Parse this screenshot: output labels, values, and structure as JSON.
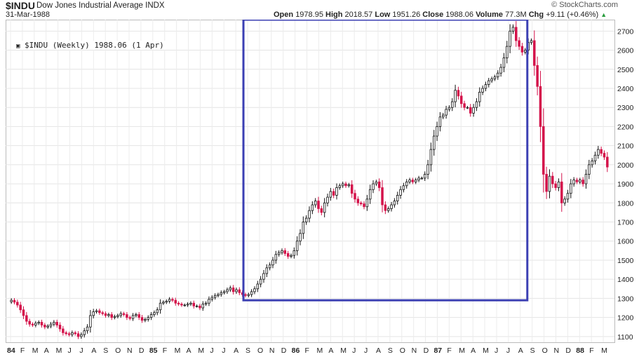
{
  "header": {
    "symbol": "$INDU",
    "name": "Dow Jones Industrial Average INDX",
    "date": "31-Mar-1988",
    "open_label": "Open",
    "open": "1978.95",
    "high_label": "High",
    "high": "2018.57",
    "low_label": "Low",
    "low": "1951.26",
    "close_label": "Close",
    "close": "1988.06",
    "volume_label": "Volume",
    "volume": "77.3M",
    "chg_label": "Chg",
    "chg": "+9.11 (+0.46%)",
    "brand": "© StockCharts.com"
  },
  "legend": {
    "text": "$INDU (Weekly) 1988.06 (1 Apr)"
  },
  "chart_data": {
    "type": "candlestick",
    "ylim": [
      1070,
      2760
    ],
    "y_ticks": [
      1100,
      1200,
      1300,
      1400,
      1500,
      1600,
      1700,
      1800,
      1900,
      2000,
      2100,
      2200,
      2300,
      2400,
      2500,
      2600,
      2700
    ],
    "x_ticks": [
      "84",
      "F",
      "M",
      "A",
      "M",
      "J",
      "J",
      "A",
      "S",
      "O",
      "N",
      "D",
      "85",
      "F",
      "M",
      "A",
      "M",
      "J",
      "J",
      "A",
      "S",
      "O",
      "N",
      "D",
      "86",
      "F",
      "M",
      "A",
      "M",
      "J",
      "J",
      "A",
      "S",
      "O",
      "N",
      "D",
      "87",
      "F",
      "M",
      "A",
      "M",
      "J",
      "J",
      "A",
      "S",
      "O",
      "N",
      "D",
      "88",
      "F",
      "M"
    ],
    "bold_ticks": [
      "84",
      "85",
      "86",
      "87",
      "88"
    ],
    "grid": true,
    "up_color": "#111111",
    "down_color": "#d4124a",
    "highlight_color": "#3b3fb3",
    "highlight_range": {
      "from": "Sep 1985",
      "to": "Aug 1987",
      "y_from": 1290,
      "y_to": 2760
    },
    "weekly_closes": [
      1290,
      1280,
      1265,
      1240,
      1210,
      1180,
      1165,
      1160,
      1170,
      1175,
      1160,
      1150,
      1155,
      1165,
      1175,
      1160,
      1140,
      1120,
      1115,
      1110,
      1120,
      1115,
      1100,
      1110,
      1130,
      1150,
      1210,
      1230,
      1235,
      1225,
      1220,
      1210,
      1215,
      1200,
      1205,
      1210,
      1220,
      1215,
      1200,
      1195,
      1210,
      1215,
      1200,
      1185,
      1190,
      1200,
      1215,
      1225,
      1240,
      1275,
      1280,
      1285,
      1295,
      1290,
      1275,
      1270,
      1265,
      1265,
      1270,
      1275,
      1260,
      1260,
      1250,
      1270,
      1275,
      1295,
      1305,
      1315,
      1320,
      1330,
      1335,
      1345,
      1355,
      1335,
      1345,
      1330,
      1320,
      1315,
      1320,
      1335,
      1350,
      1375,
      1400,
      1430,
      1460,
      1475,
      1500,
      1530,
      1540,
      1550,
      1535,
      1520,
      1525,
      1550,
      1600,
      1640,
      1700,
      1720,
      1760,
      1790,
      1810,
      1770,
      1750,
      1800,
      1830,
      1860,
      1840,
      1880,
      1890,
      1900,
      1890,
      1895,
      1850,
      1820,
      1800,
      1795,
      1780,
      1820,
      1870,
      1900,
      1910,
      1880,
      1790,
      1760,
      1770,
      1790,
      1810,
      1840,
      1870,
      1890,
      1910,
      1920,
      1910,
      1920,
      1930,
      1930,
      1950,
      2000,
      2080,
      2150,
      2200,
      2250,
      2260,
      2290,
      2300,
      2330,
      2390,
      2360,
      2320,
      2300,
      2300,
      2270,
      2300,
      2330,
      2380,
      2400,
      2420,
      2440,
      2450,
      2460,
      2480,
      2510,
      2560,
      2620,
      2700,
      2720,
      2650,
      2620,
      2590,
      2600,
      2640,
      2650,
      2520,
      2410,
      2200,
      1950,
      1860,
      1940,
      1900,
      1880,
      1910,
      1800,
      1820,
      1850,
      1900,
      1920,
      1910,
      1920,
      1900,
      1950,
      2000,
      2020,
      2050,
      2080,
      2060,
      2040,
      1988
    ]
  }
}
